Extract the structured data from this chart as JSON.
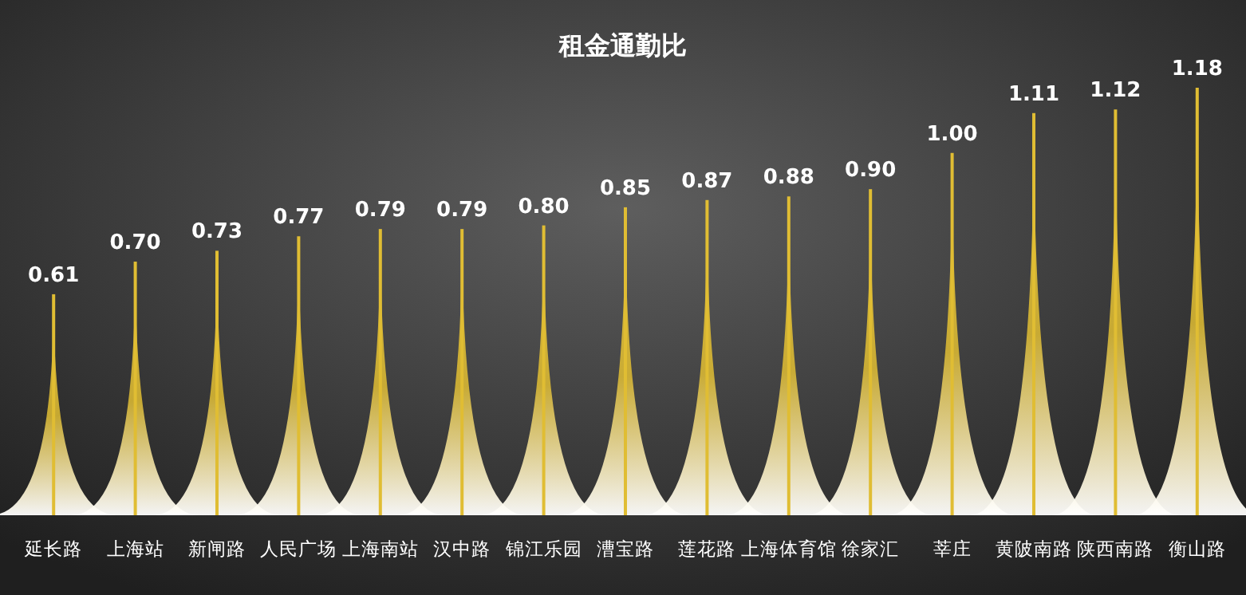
{
  "chart_data": {
    "type": "bar",
    "title": "租金通勤比",
    "categories": [
      "延长路",
      "上海站",
      "新闸路",
      "人民广场",
      "上海南站",
      "汉中路",
      "锦江乐园",
      "漕宝路",
      "莲花路",
      "上海体育馆",
      "徐家汇",
      "莘庄",
      "黄陂南路",
      "陕西南路",
      "衡山路"
    ],
    "values": [
      0.61,
      0.7,
      0.73,
      0.77,
      0.79,
      0.79,
      0.8,
      0.85,
      0.87,
      0.88,
      0.9,
      1.0,
      1.11,
      1.12,
      1.18
    ],
    "value_labels": [
      "0.61",
      "0.70",
      "0.73",
      "0.77",
      "0.79",
      "0.79",
      "0.80",
      "0.85",
      "0.87",
      "0.88",
      "0.90",
      "1.00",
      "1.11",
      "1.12",
      "1.18"
    ],
    "color": "#e0bd33"
  }
}
